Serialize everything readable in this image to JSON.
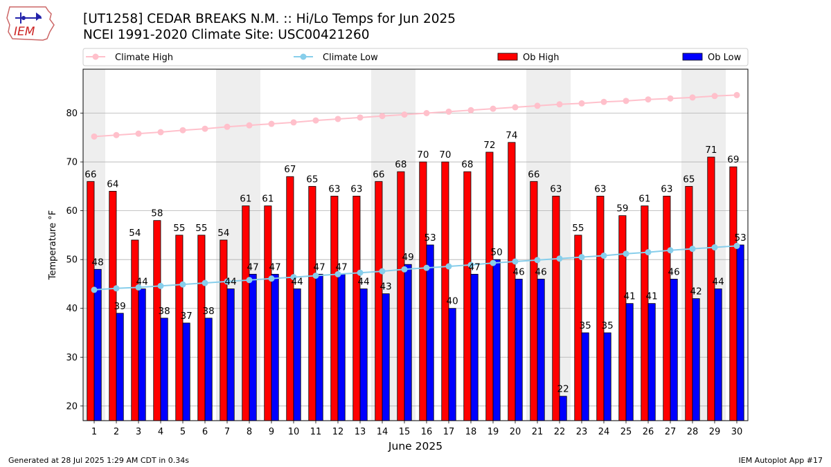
{
  "header": {
    "title_line1": "[UT1258] CEDAR BREAKS N.M. :: Hi/Lo Temps for Jun 2025",
    "title_line2": "NCEI 1991-2020 Climate Site: USC00421260",
    "logo_text": "IEM"
  },
  "footer": {
    "left": "Generated at 28 Jul 2025 1:29 AM CDT in 0.34s",
    "right": "IEM Autoplot App #17"
  },
  "colors": {
    "ob_high": "#ff0000",
    "ob_low": "#0000ff",
    "climate_high": "#ffc0cb",
    "climate_low": "#87ceeb",
    "weekend_band": "#eeeeee",
    "grid": "#b0b0b0"
  },
  "chart_data": {
    "type": "bar",
    "xlabel": "June 2025",
    "ylabel": "Temperature °F",
    "ylim": [
      17,
      89
    ],
    "yticks": [
      20,
      30,
      40,
      50,
      60,
      70,
      80
    ],
    "grid": "horizontal",
    "legend_position": "top",
    "categories": [
      "1",
      "2",
      "3",
      "4",
      "5",
      "6",
      "7",
      "8",
      "9",
      "10",
      "11",
      "12",
      "13",
      "14",
      "15",
      "16",
      "17",
      "18",
      "19",
      "20",
      "21",
      "22",
      "23",
      "24",
      "25",
      "26",
      "27",
      "28",
      "29",
      "30"
    ],
    "shaded_days": [
      1,
      7,
      8,
      14,
      15,
      21,
      22,
      28,
      29
    ],
    "series": [
      {
        "name": "Ob High",
        "kind": "bar",
        "values": [
          66,
          64,
          54,
          58,
          55,
          55,
          54,
          61,
          61,
          67,
          65,
          63,
          63,
          66,
          68,
          70,
          70,
          68,
          72,
          74,
          66,
          63,
          55,
          63,
          59,
          61,
          63,
          65,
          71,
          69
        ]
      },
      {
        "name": "Ob Low",
        "kind": "bar",
        "values": [
          48,
          39,
          44,
          38,
          37,
          38,
          44,
          47,
          47,
          44,
          47,
          47,
          44,
          43,
          49,
          53,
          40,
          47,
          50,
          46,
          46,
          22,
          35,
          35,
          41,
          41,
          46,
          42,
          44,
          53
        ]
      },
      {
        "name": "Climate High",
        "kind": "line",
        "values": [
          75.2,
          75.5,
          75.8,
          76.1,
          76.5,
          76.8,
          77.2,
          77.5,
          77.8,
          78.1,
          78.5,
          78.8,
          79.1,
          79.4,
          79.7,
          80.0,
          80.3,
          80.6,
          80.9,
          81.2,
          81.5,
          81.8,
          82.0,
          82.3,
          82.5,
          82.8,
          83.0,
          83.2,
          83.5,
          83.7
        ]
      },
      {
        "name": "Climate Low",
        "kind": "line",
        "values": [
          43.8,
          44.1,
          44.3,
          44.6,
          44.9,
          45.2,
          45.5,
          45.8,
          46.1,
          46.4,
          46.7,
          47.0,
          47.3,
          47.6,
          48.0,
          48.3,
          48.6,
          48.9,
          49.3,
          49.6,
          49.9,
          50.2,
          50.5,
          50.8,
          51.2,
          51.5,
          51.9,
          52.2,
          52.5,
          52.8
        ]
      }
    ]
  }
}
